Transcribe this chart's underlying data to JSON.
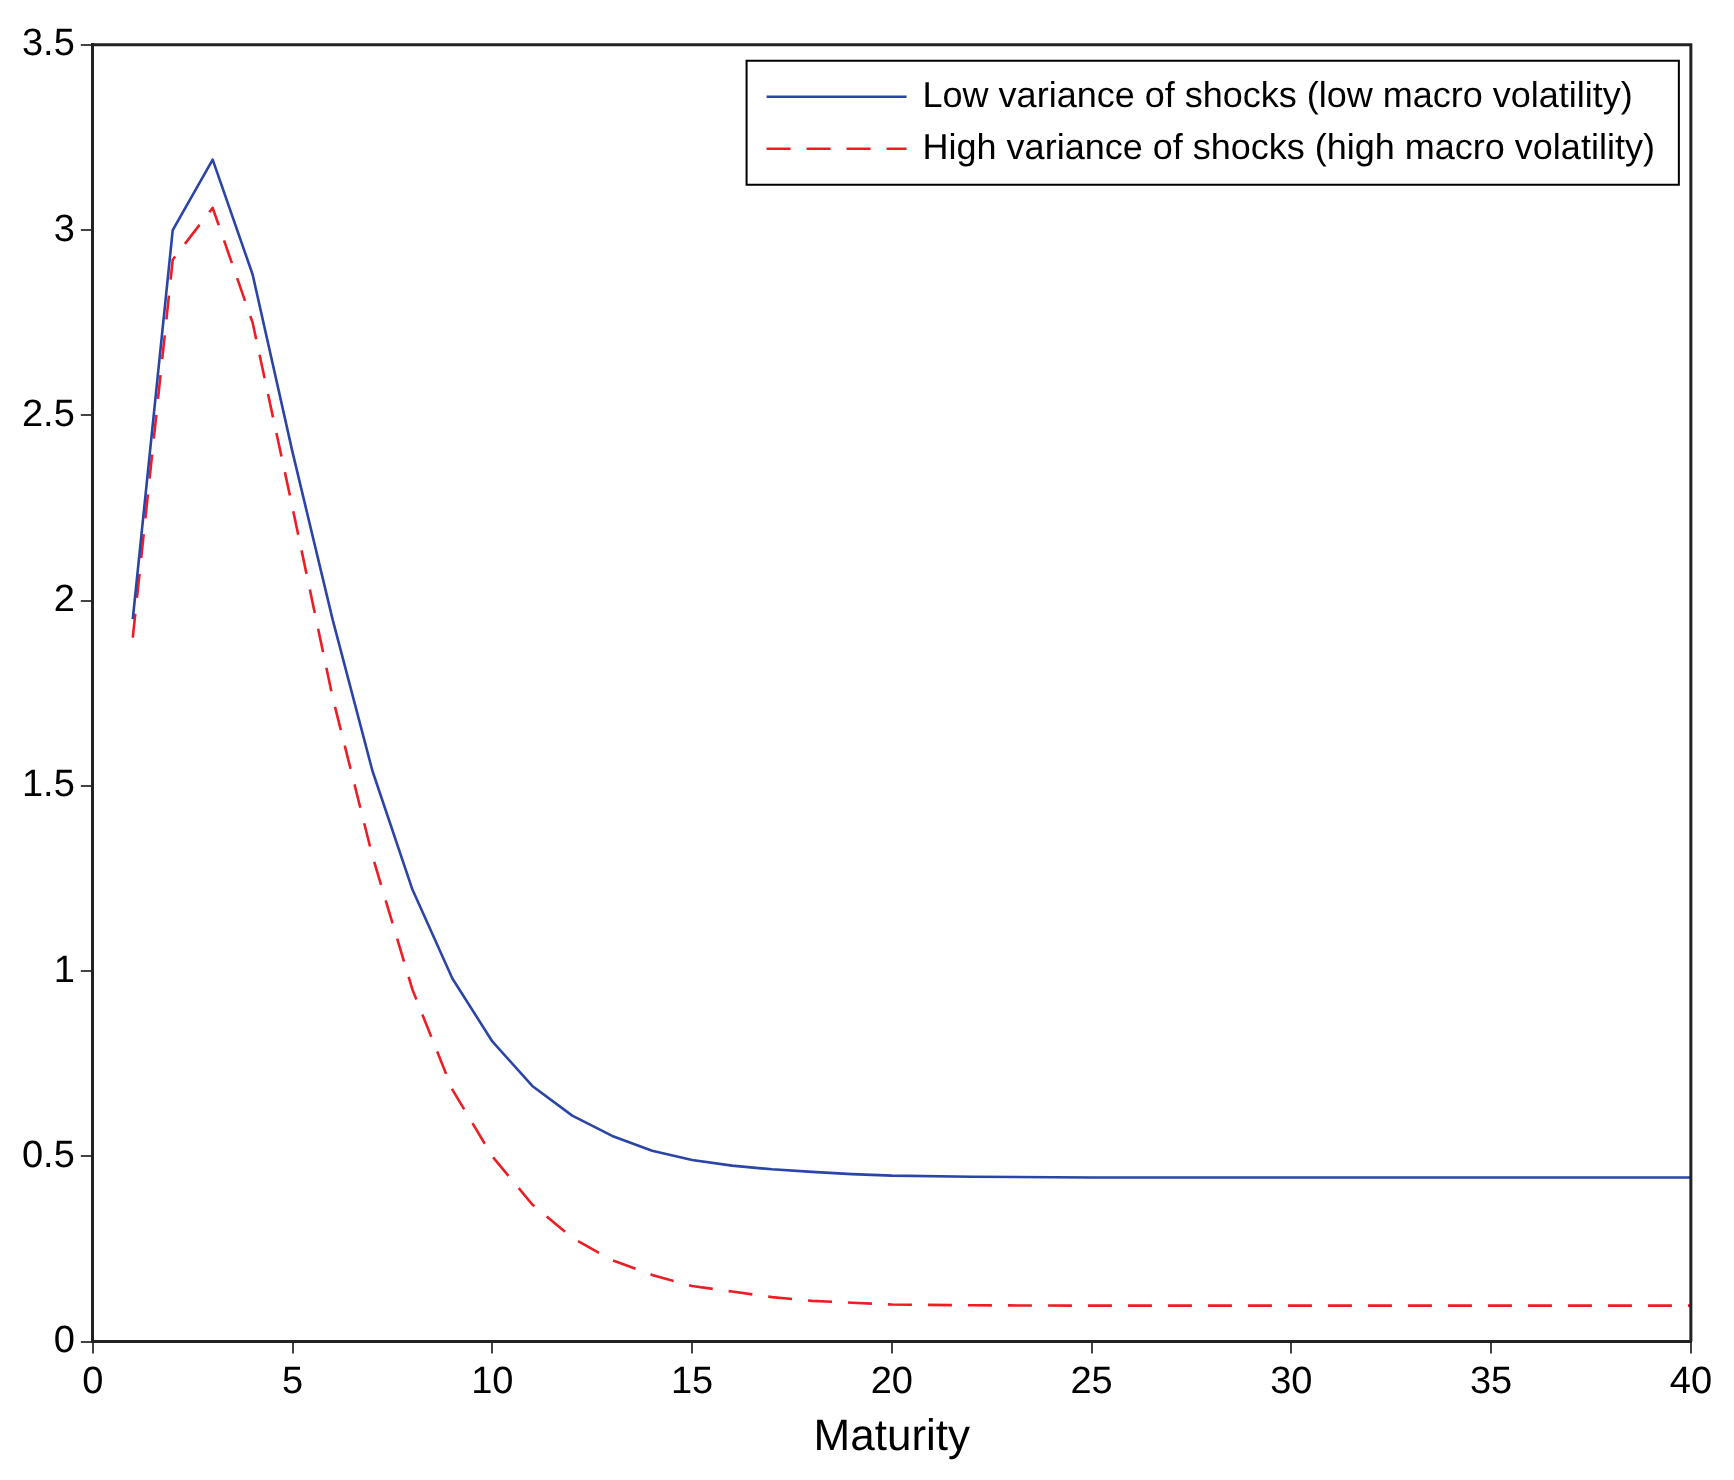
{
  "chart_data": {
    "type": "line",
    "xlabel": "Maturity",
    "x": [
      1,
      2,
      3,
      4,
      5,
      6,
      7,
      8,
      9,
      10,
      11,
      12,
      13,
      14,
      15,
      16,
      17,
      18,
      19,
      20,
      22,
      25,
      30,
      35,
      40
    ],
    "series": [
      {
        "name": "Low variance of shocks (low macro volatility)",
        "color": "#2b44a8",
        "line_style": "solid",
        "values": [
          1.95,
          3.0,
          3.19,
          2.88,
          2.4,
          1.95,
          1.54,
          1.22,
          0.98,
          0.81,
          0.69,
          0.61,
          0.555,
          0.515,
          0.49,
          0.475,
          0.465,
          0.458,
          0.452,
          0.448,
          0.445,
          0.443,
          0.443,
          0.443,
          0.443
        ]
      },
      {
        "name": "High variance of shocks (high macro volatility)",
        "color": "#ee1c24",
        "line_style": "dashed",
        "values": [
          1.9,
          2.92,
          3.06,
          2.75,
          2.25,
          1.74,
          1.31,
          0.95,
          0.68,
          0.5,
          0.37,
          0.28,
          0.22,
          0.18,
          0.15,
          0.135,
          0.12,
          0.11,
          0.105,
          0.1,
          0.098,
          0.097,
          0.097,
          0.097,
          0.097
        ]
      }
    ],
    "xlim": [
      0,
      40
    ],
    "xticks": [
      0,
      5,
      10,
      15,
      20,
      25,
      30,
      35,
      40
    ],
    "ylim": [
      0,
      3.5
    ],
    "yticks": [
      0,
      0.5,
      1,
      1.5,
      2,
      2.5,
      3,
      3.5
    ],
    "grid": false,
    "legend": "top right",
    "marker": "none"
  }
}
